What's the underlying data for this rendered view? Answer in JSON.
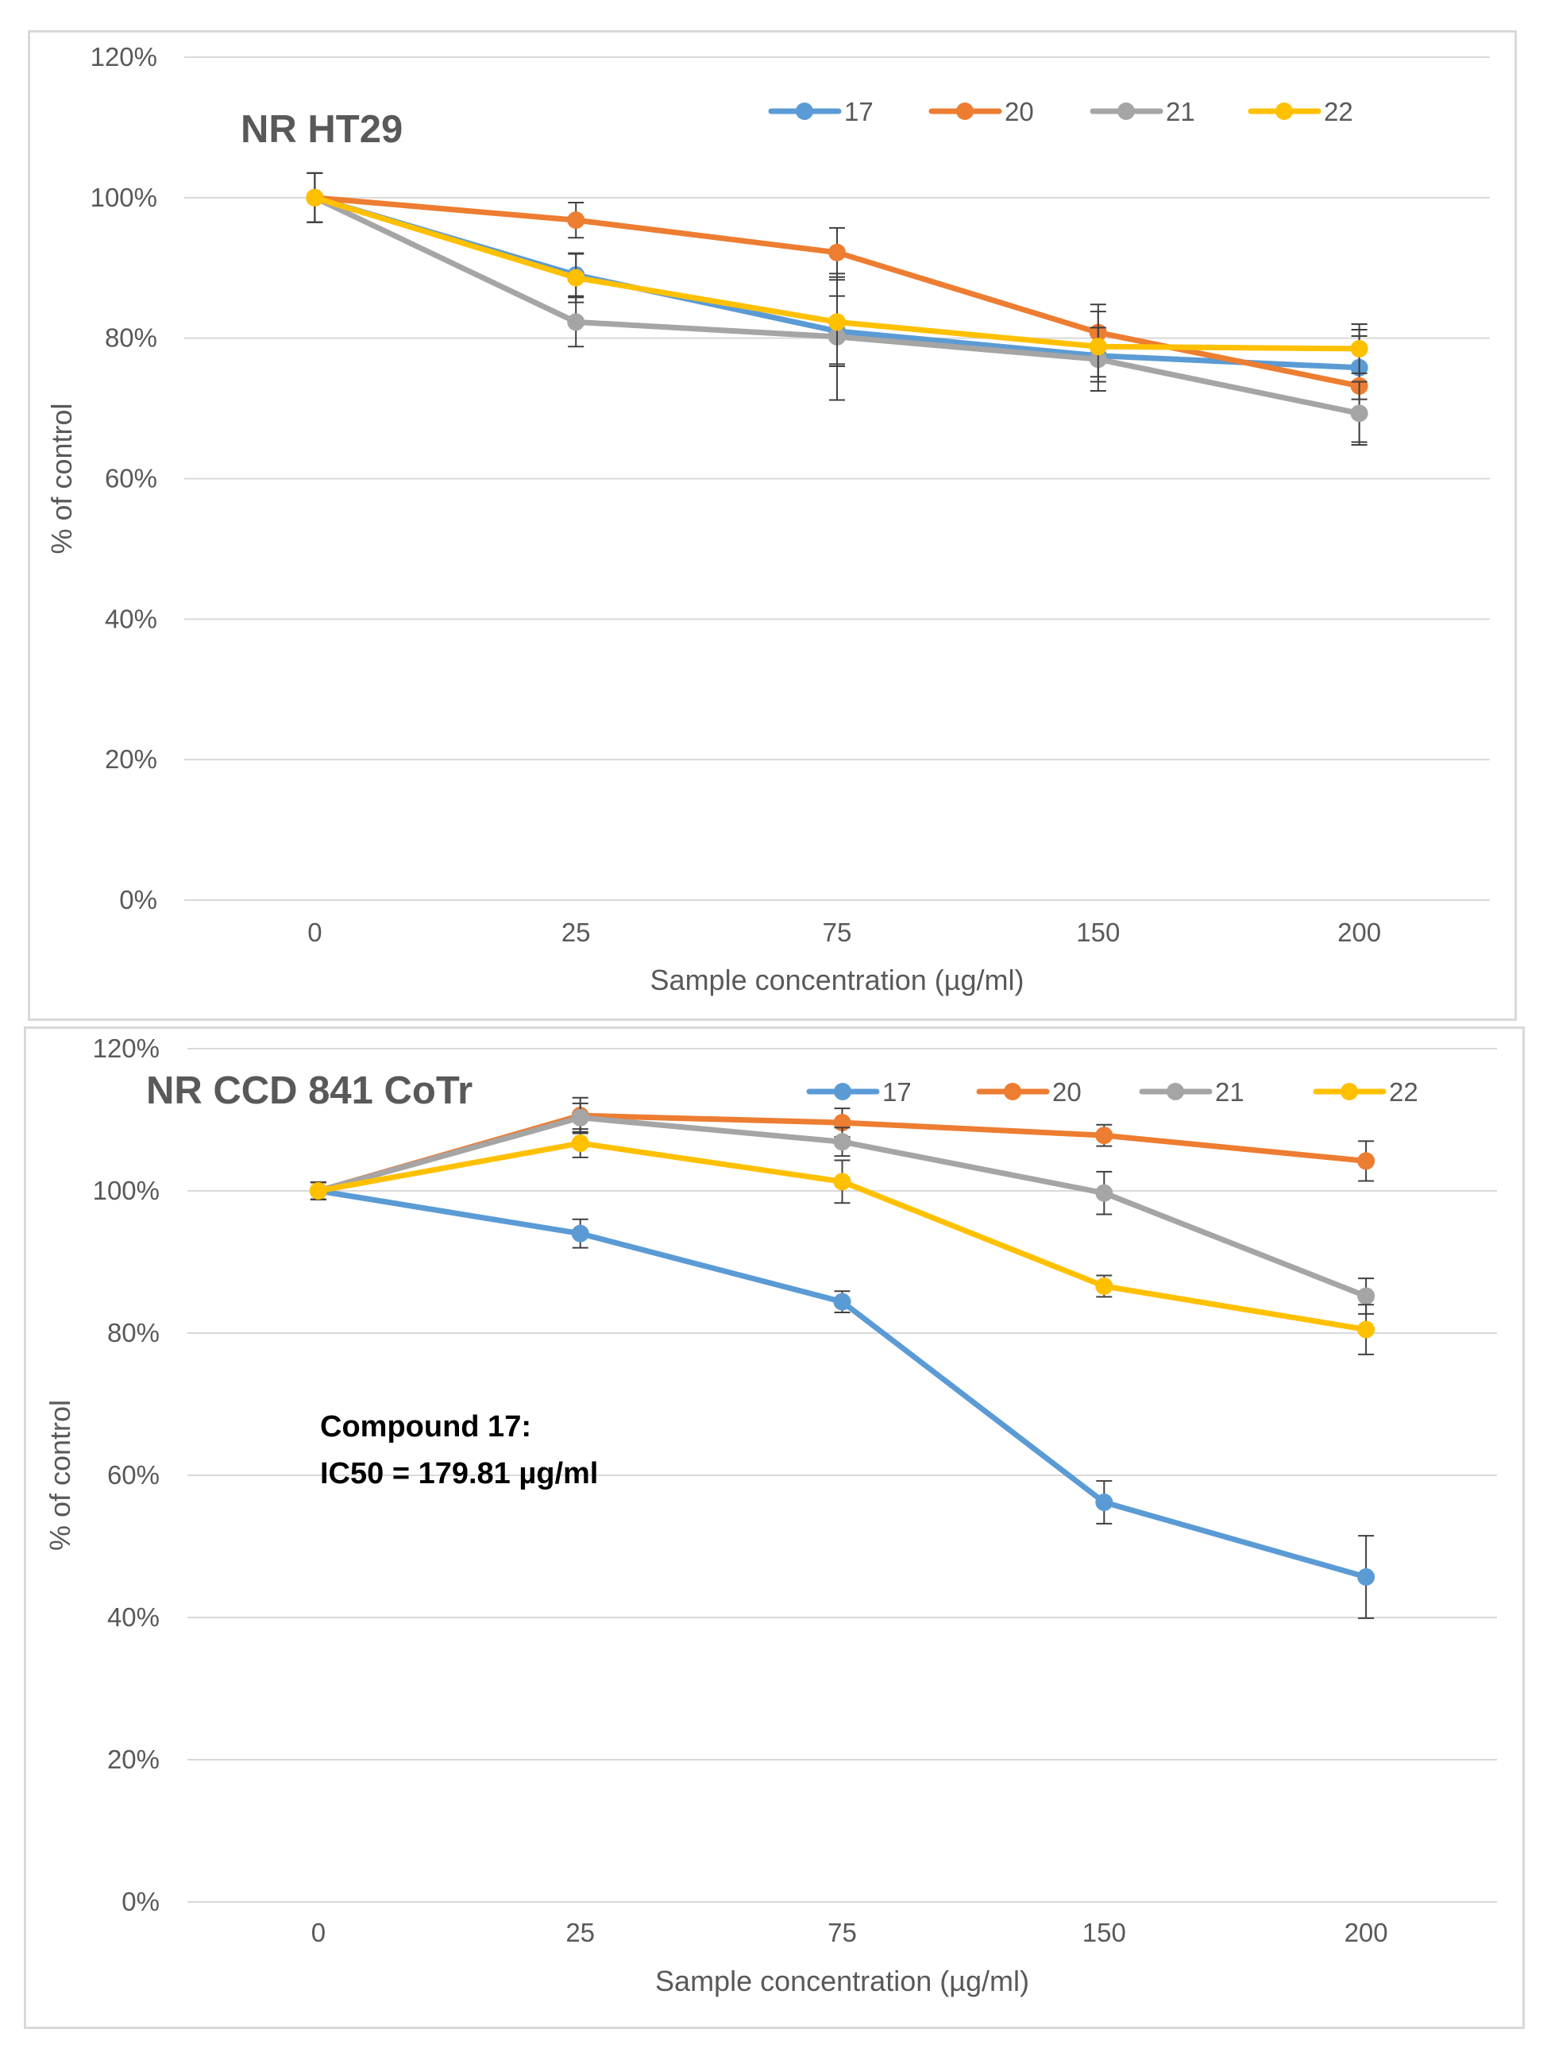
{
  "colors": {
    "s17": "#5b9bd5",
    "s20": "#ed7d31",
    "s21": "#a5a5a5",
    "s22": "#ffc000",
    "grid": "#d9d9d9",
    "text": "#595959"
  },
  "chart_data": [
    {
      "type": "line",
      "title": "NR HT29",
      "xlabel": "Sample concentration (µg/ml)",
      "ylabel": "% of control",
      "categories": [
        "0",
        "25",
        "75",
        "150",
        "200"
      ],
      "yticks": [
        "0%",
        "20%",
        "40%",
        "60%",
        "80%",
        "100%",
        "120%"
      ],
      "ylim": [
        0,
        120
      ],
      "grid": true,
      "legend_position": "top-right",
      "series": [
        {
          "name": "17",
          "color": "#5b9bd5",
          "values": [
            100,
            89,
            81,
            77.5,
            75.8
          ],
          "errors": [
            3.5,
            3,
            5,
            3,
            4.5
          ]
        },
        {
          "name": "20",
          "color": "#ed7d31",
          "values": [
            100,
            96.8,
            92.2,
            80.8,
            73.2
          ],
          "errors": [
            3.5,
            2.5,
            3.5,
            4,
            8
          ]
        },
        {
          "name": "21",
          "color": "#a5a5a5",
          "values": [
            100,
            82.3,
            80.2,
            77,
            69.3
          ],
          "errors": [
            3.5,
            3.5,
            9,
            4.5,
            4.5
          ]
        },
        {
          "name": "22",
          "color": "#ffc000",
          "values": [
            100,
            88.6,
            82.3,
            78.8,
            78.5
          ],
          "errors": [
            3.5,
            3.5,
            6,
            5,
            3.5
          ]
        }
      ]
    },
    {
      "type": "line",
      "title": "NR CCD 841 CoTr",
      "xlabel": "Sample concentration (µg/ml)",
      "ylabel": "% of control",
      "categories": [
        "0",
        "25",
        "75",
        "150",
        "200"
      ],
      "yticks": [
        "0%",
        "20%",
        "40%",
        "60%",
        "80%",
        "100%",
        "120%"
      ],
      "ylim": [
        0,
        120
      ],
      "grid": true,
      "legend_position": "top-right",
      "annotation": [
        "Compound 17:",
        "IC50 = 179.81 µg/ml"
      ],
      "series": [
        {
          "name": "17",
          "color": "#5b9bd5",
          "values": [
            100,
            94,
            84.4,
            56.2,
            45.7
          ],
          "errors": [
            1.2,
            2,
            1.5,
            3,
            5.8
          ]
        },
        {
          "name": "20",
          "color": "#ed7d31",
          "values": [
            100,
            110.6,
            109.6,
            107.8,
            104.2
          ],
          "errors": [
            1.2,
            2.5,
            2,
            1.5,
            2.8
          ]
        },
        {
          "name": "21",
          "color": "#a5a5a5",
          "values": [
            100,
            110.3,
            106.9,
            99.7,
            85.2
          ],
          "errors": [
            1.2,
            2,
            2,
            3,
            2.5
          ]
        },
        {
          "name": "22",
          "color": "#ffc000",
          "values": [
            100,
            106.7,
            101.3,
            86.6,
            80.5
          ],
          "errors": [
            1.2,
            2,
            3,
            1.5,
            3.5
          ]
        }
      ]
    }
  ]
}
